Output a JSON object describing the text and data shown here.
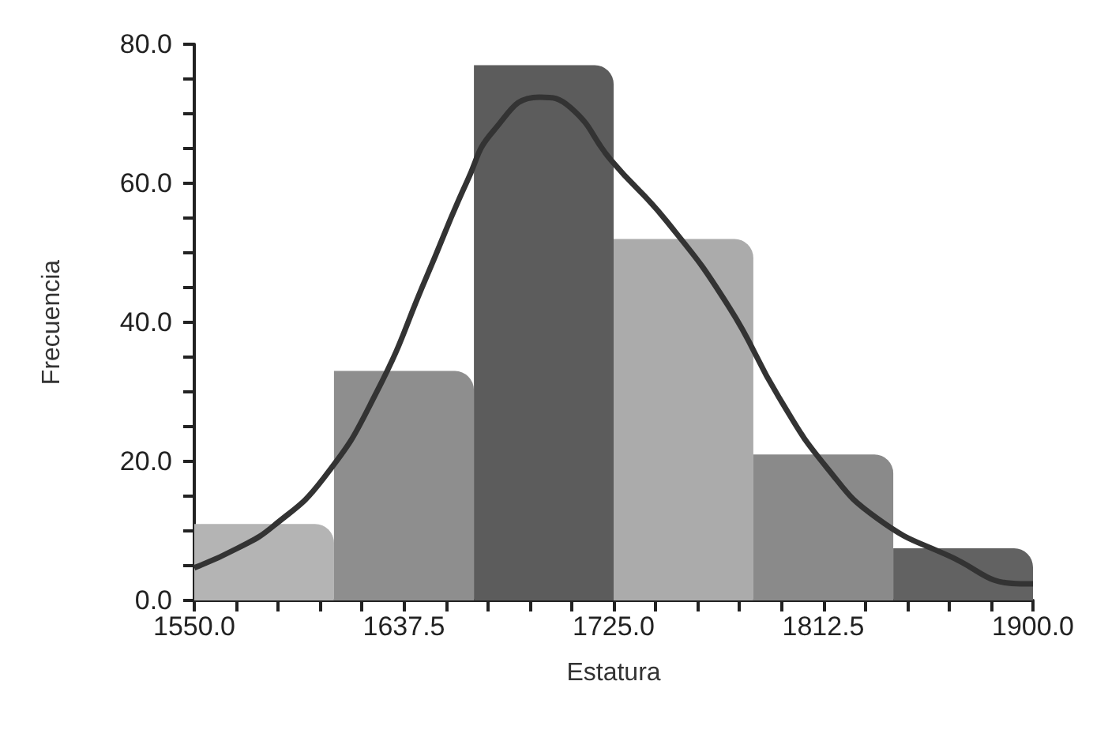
{
  "chart_data": {
    "type": "histogram",
    "xlabel": "Estatura",
    "ylabel": "Frecuencia",
    "bins": [
      1550,
      1608.3,
      1666.7,
      1725,
      1783.3,
      1841.7,
      1900
    ],
    "series": [
      {
        "values": [
          11,
          33,
          77,
          52,
          21,
          7.5
        ],
        "colors": [
          "#b4b4b4",
          "#8e8e8e",
          "#5c5c5c",
          "#ababab",
          "#8a8a8a",
          "#626262"
        ]
      },
      {
        "type": "line",
        "color": "#333333",
        "x": [
          1550,
          1568,
          1583,
          1604,
          1626,
          1647,
          1664,
          1675,
          1694,
          1707,
          1724,
          1747,
          1773,
          1794,
          1814,
          1835,
          1865,
          1895,
          1900
        ],
        "values": [
          4.7,
          7.5,
          10.7,
          17.6,
          29.9,
          46.6,
          60.4,
          67.6,
          72.4,
          70.9,
          63.3,
          54.6,
          42.3,
          29.2,
          19.1,
          11.8,
          6.4,
          2.4,
          2.4
        ]
      }
    ],
    "xlim": [
      1550,
      1900
    ],
    "xticks": [
      {
        "value": 1550,
        "label": "1550.0"
      },
      {
        "value": 1567.5,
        "label": null
      },
      {
        "value": 1585,
        "label": null
      },
      {
        "value": 1602.5,
        "label": null
      },
      {
        "value": 1620,
        "label": null
      },
      {
        "value": 1637.5,
        "label": "1637.5"
      },
      {
        "value": 1655,
        "label": null
      },
      {
        "value": 1672.5,
        "label": null
      },
      {
        "value": 1690,
        "label": null
      },
      {
        "value": 1707.5,
        "label": null
      },
      {
        "value": 1725,
        "label": "1725.0"
      },
      {
        "value": 1742.5,
        "label": null
      },
      {
        "value": 1760,
        "label": null
      },
      {
        "value": 1777.5,
        "label": null
      },
      {
        "value": 1795,
        "label": null
      },
      {
        "value": 1812.5,
        "label": "1812.5"
      },
      {
        "value": 1830,
        "label": null
      },
      {
        "value": 1847.5,
        "label": null
      },
      {
        "value": 1865,
        "label": null
      },
      {
        "value": 1882.5,
        "label": null
      },
      {
        "value": 1900,
        "label": "1900.0"
      }
    ],
    "ylim": [
      0,
      80
    ],
    "yticks": [
      {
        "value": 0,
        "label": "0.0"
      },
      {
        "value": 5,
        "label": null
      },
      {
        "value": 10,
        "label": null
      },
      {
        "value": 15,
        "label": null
      },
      {
        "value": 20,
        "label": "20.0"
      },
      {
        "value": 25,
        "label": null
      },
      {
        "value": 30,
        "label": null
      },
      {
        "value": 35,
        "label": null
      },
      {
        "value": 40,
        "label": "40.0"
      },
      {
        "value": 45,
        "label": null
      },
      {
        "value": 50,
        "label": null
      },
      {
        "value": 55,
        "label": null
      },
      {
        "value": 60,
        "label": "60.0"
      },
      {
        "value": 65,
        "label": null
      },
      {
        "value": 70,
        "label": null
      },
      {
        "value": 75,
        "label": null
      },
      {
        "value": 80,
        "label": "80.0"
      }
    ],
    "grid": false,
    "marker": "none",
    "line_style": "solid"
  }
}
